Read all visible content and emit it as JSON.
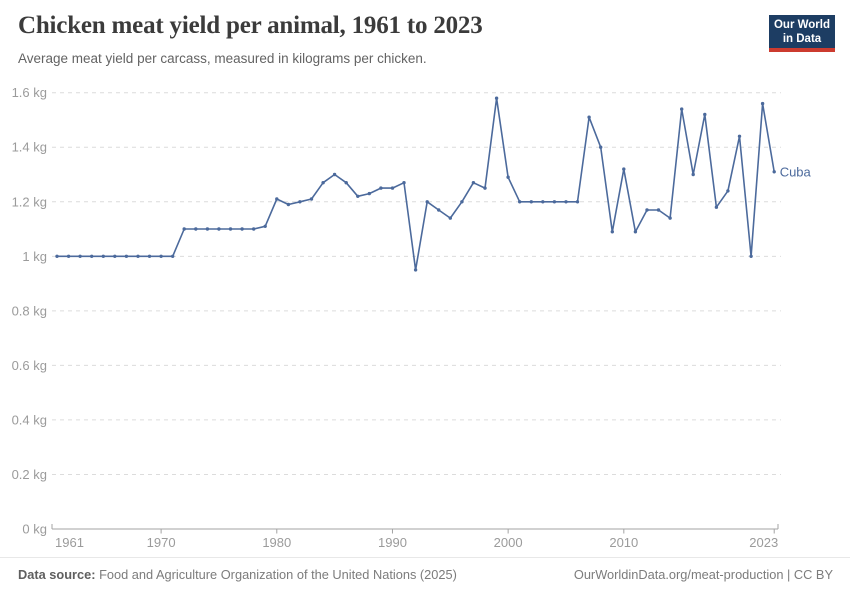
{
  "header": {
    "title": "Chicken meat yield per animal, 1961 to 2023",
    "subtitle": "Average meat yield per carcass, measured in kilograms per chicken.",
    "logo": {
      "line1": "Our World",
      "line2": "in Data",
      "bg_color": "#1d3d63",
      "bar_color": "#cc3b2f"
    }
  },
  "chart_data": {
    "type": "line",
    "title": "Chicken meat yield per animal, 1961 to 2023",
    "xlabel": "",
    "ylabel": "",
    "unit": "kg",
    "xlim": [
      1961,
      2023
    ],
    "ylim": [
      0,
      1.6
    ],
    "x_ticks": [
      1961,
      1970,
      1980,
      1990,
      2000,
      2010,
      2023
    ],
    "y_ticks": [
      0,
      0.2,
      0.4,
      0.6,
      0.8,
      1.0,
      1.2,
      1.4,
      1.6
    ],
    "y_tick_labels": [
      "0 kg",
      "0.2 kg",
      "0.4 kg",
      "0.6 kg",
      "0.8 kg",
      "1 kg",
      "1.2 kg",
      "1.4 kg",
      "1.6 kg"
    ],
    "grid": "horizontal-dashed",
    "legend_position": "end-of-line",
    "axis_color": "#a3a3a3",
    "grid_color": "#dcdcdc",
    "tick_label_color": "#9b9b9b",
    "series": [
      {
        "name": "Cuba",
        "color": "#4c6a9c",
        "x": [
          1961,
          1962,
          1963,
          1964,
          1965,
          1966,
          1967,
          1968,
          1969,
          1970,
          1971,
          1972,
          1973,
          1974,
          1975,
          1976,
          1977,
          1978,
          1979,
          1980,
          1981,
          1982,
          1983,
          1984,
          1985,
          1986,
          1987,
          1988,
          1989,
          1990,
          1991,
          1992,
          1993,
          1994,
          1995,
          1996,
          1997,
          1998,
          1999,
          2000,
          2001,
          2002,
          2003,
          2004,
          2005,
          2006,
          2007,
          2008,
          2009,
          2010,
          2011,
          2012,
          2013,
          2014,
          2015,
          2016,
          2017,
          2018,
          2019,
          2020,
          2021,
          2022,
          2023
        ],
        "values": [
          1.0,
          1.0,
          1.0,
          1.0,
          1.0,
          1.0,
          1.0,
          1.0,
          1.0,
          1.0,
          1.0,
          1.1,
          1.1,
          1.1,
          1.1,
          1.1,
          1.1,
          1.1,
          1.11,
          1.21,
          1.19,
          1.2,
          1.21,
          1.27,
          1.3,
          1.27,
          1.22,
          1.23,
          1.25,
          1.25,
          1.27,
          0.95,
          1.2,
          1.17,
          1.14,
          1.2,
          1.27,
          1.25,
          1.58,
          1.29,
          1.2,
          1.2,
          1.2,
          1.2,
          1.2,
          1.2,
          1.51,
          1.4,
          1.09,
          1.32,
          1.09,
          1.17,
          1.17,
          1.14,
          1.54,
          1.3,
          1.52,
          1.18,
          1.24,
          1.44,
          1.0,
          1.56,
          1.31
        ]
      }
    ]
  },
  "footer": {
    "source_label": "Data source:",
    "source_text": " Food and Agriculture Organization of the United Nations (2025)",
    "right_text": "OurWorldinData.org/meat-production | CC BY"
  }
}
